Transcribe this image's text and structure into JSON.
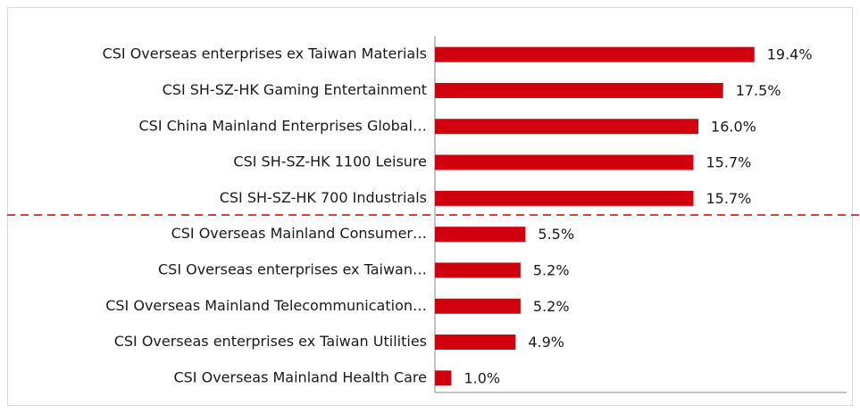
{
  "chart_data": {
    "type": "barh",
    "categories": [
      "CSI Overseas enterprises ex Taiwan Materials",
      "CSI SH-SZ-HK Gaming Entertainment",
      "CSI China Mainland Enterprises Global…",
      "CSI SH-SZ-HK 1100 Leisure",
      "CSI SH-SZ-HK 700 Industrials",
      "CSI Overseas Mainland Consumer…",
      "CSI Overseas enterprises ex Taiwan…",
      "CSI Overseas Mainland Telecommunication…",
      "CSI Overseas enterprises ex Taiwan Utilities",
      "CSI Overseas Mainland Health Care"
    ],
    "values": [
      19.4,
      17.5,
      16.0,
      15.7,
      15.7,
      5.5,
      5.2,
      5.2,
      4.9,
      1.0
    ],
    "value_labels": [
      "19.4%",
      "17.5%",
      "16.0%",
      "15.7%",
      "15.7%",
      "5.5%",
      "5.2%",
      "5.2%",
      "4.9%",
      "1.0%"
    ],
    "color": "#d0000f",
    "xlim": [
      0,
      25
    ]
  }
}
